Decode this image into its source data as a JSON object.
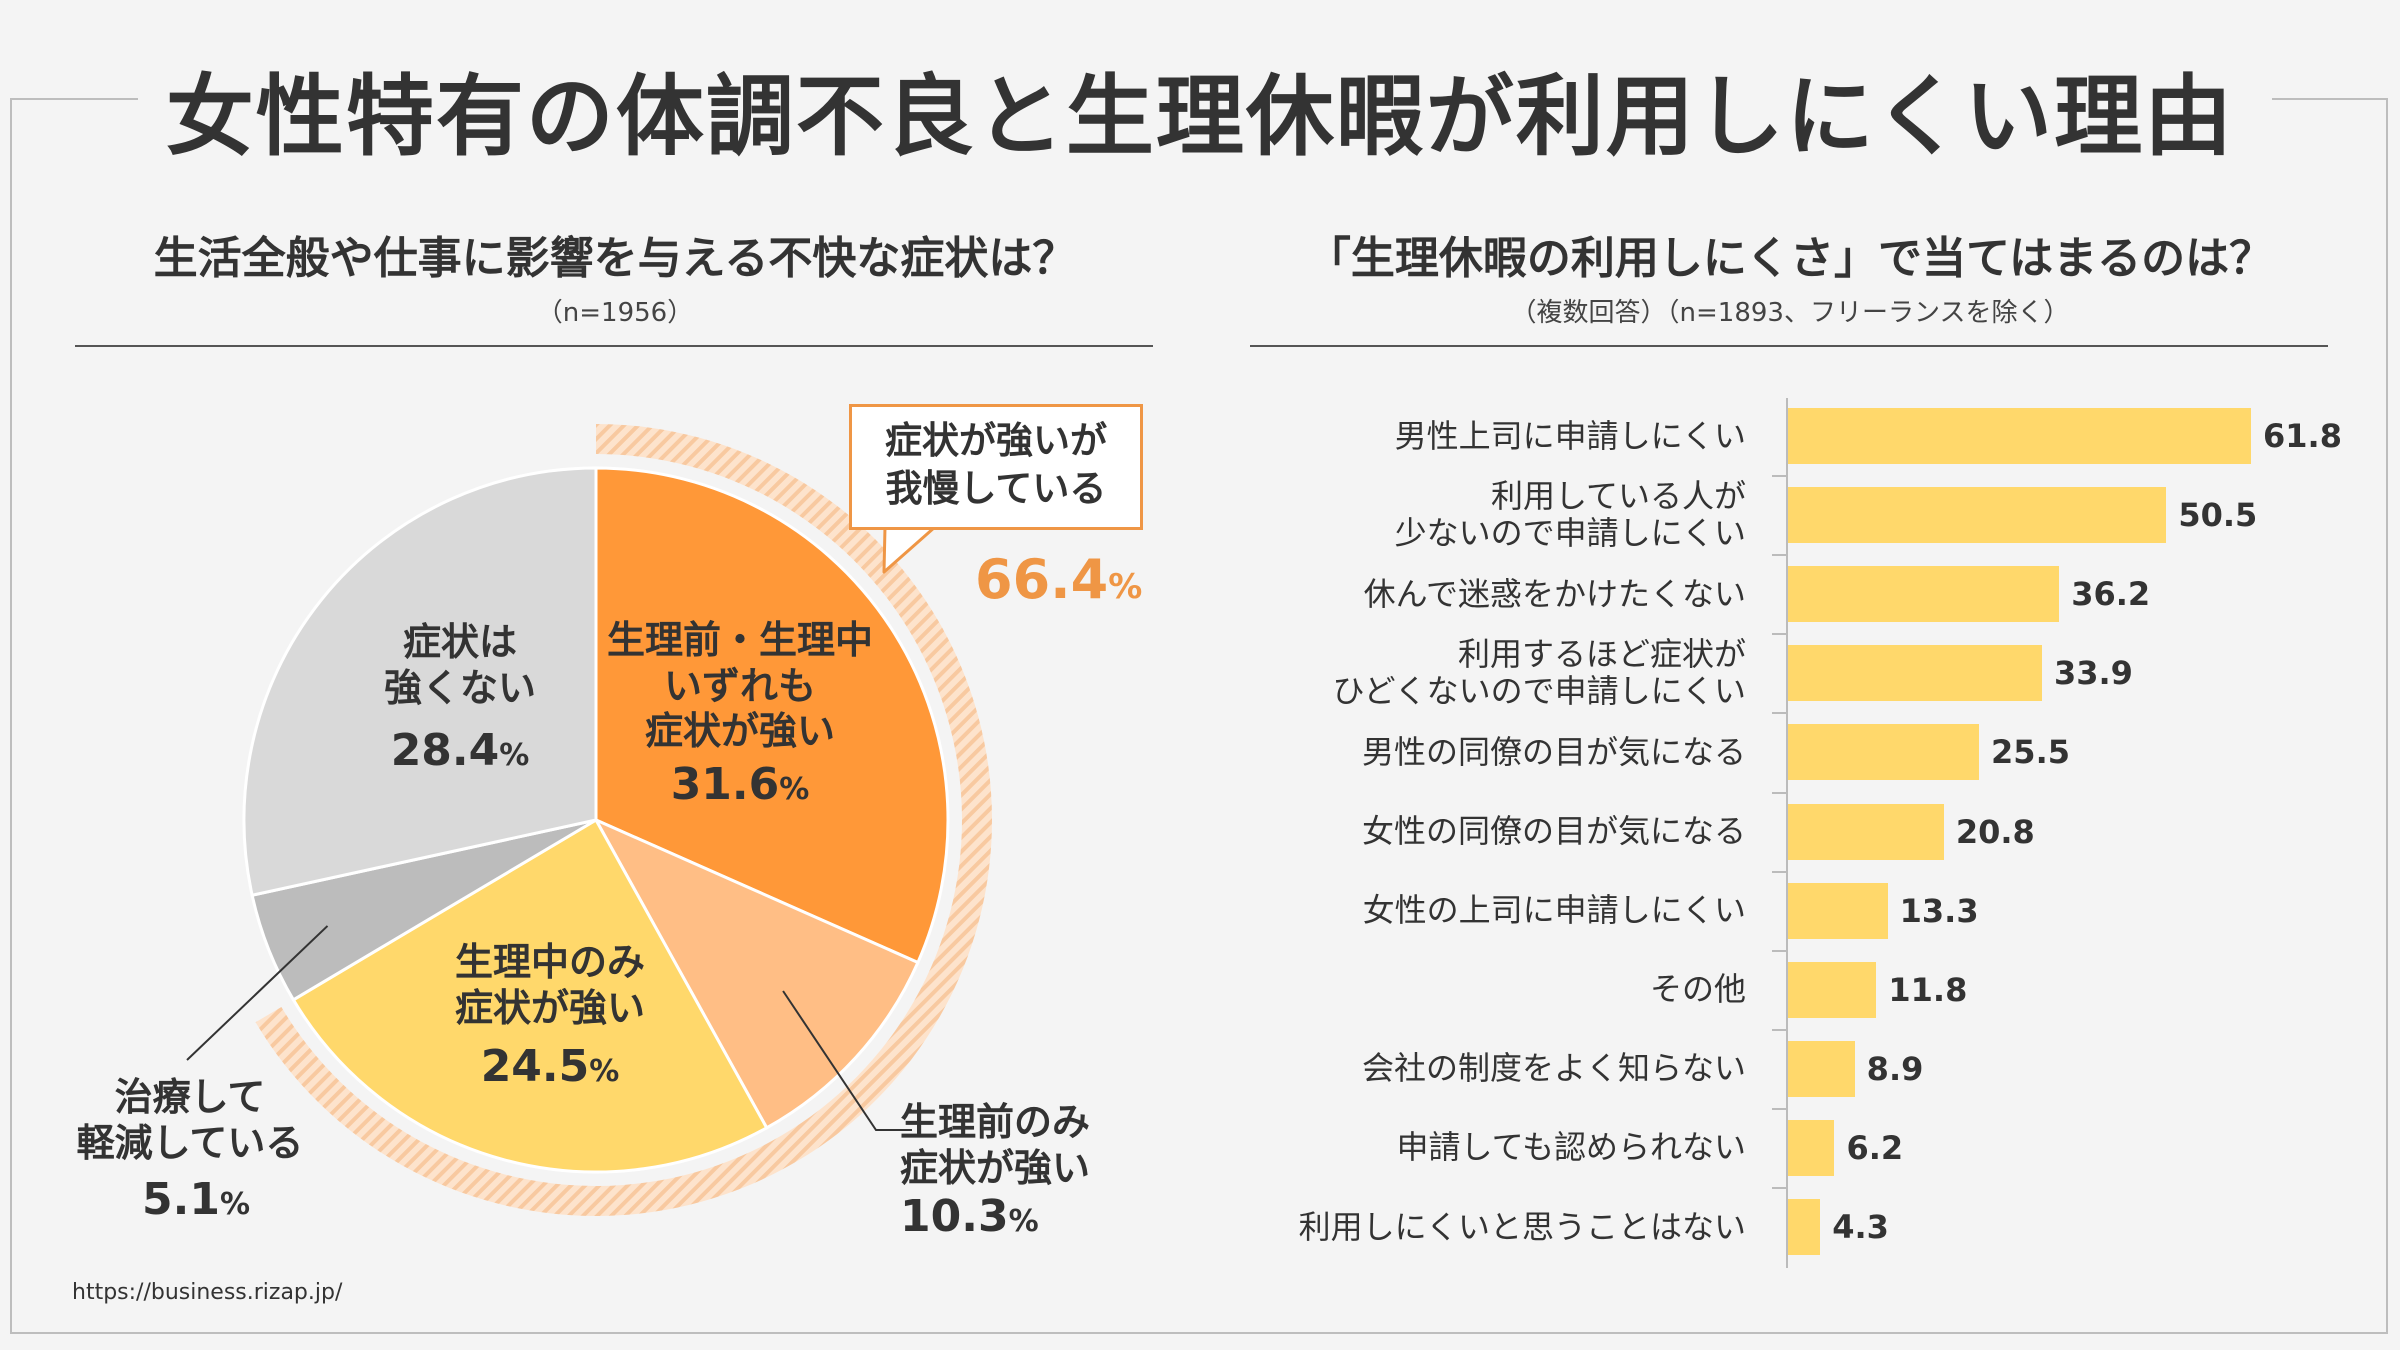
{
  "title": "女性特有の体調不良と生理休暇が利用しにくい理由",
  "left": {
    "heading": "生活全般や仕事に影響を与える不快な症状は？",
    "sub": "（n=1956）"
  },
  "right": {
    "heading": "「生理休暇の利用しにくさ」で当てはまるのは？",
    "sub": "（複数回答）（n=1893、フリーランスを除く）"
  },
  "callout": {
    "line1": "症状が強いが",
    "line2": "我慢している",
    "value": "66.4",
    "unit": "%"
  },
  "source": "https://business.rizap.jp/",
  "colors": {
    "orange": "#ff9838",
    "light_orange": "#ffbe85",
    "yellow": "#ffd86b",
    "dark_gray": "#bcbcbc",
    "light_gray": "#d9d9d9",
    "accent": "#ef9645"
  },
  "chart_data": [
    {
      "type": "pie",
      "slices": [
        {
          "label": "生理前・生理中いずれも症状が強い",
          "lines": [
            "生理前・生理中",
            "いずれも",
            "症状が強い"
          ],
          "value": 31.6,
          "value_text": "31.6",
          "color": "#ff9838"
        },
        {
          "label": "生理前のみ症状が強い",
          "lines": [
            "生理前のみ",
            "症状が強い"
          ],
          "value": 10.3,
          "value_text": "10.3",
          "color": "#ffbe85"
        },
        {
          "label": "生理中のみ症状が強い",
          "lines": [
            "生理中のみ",
            "症状が強い"
          ],
          "value": 24.5,
          "value_text": "24.5",
          "color": "#ffd86b"
        },
        {
          "label": "治療して軽減している",
          "lines": [
            "治療して",
            "軽減している"
          ],
          "value": 5.1,
          "value_text": "5.1",
          "color": "#bcbcbc"
        },
        {
          "label": "症状は強くない",
          "lines": [
            "症状は",
            "強くない"
          ],
          "value": 28.4,
          "value_text": "28.4",
          "color": "#d9d9d9"
        }
      ],
      "unit": "%"
    },
    {
      "type": "bar",
      "orientation": "horizontal",
      "categories": [
        [
          "男性上司に申請しにくい"
        ],
        [
          "利用している人が",
          "少ないので申請しにくい"
        ],
        [
          "休んで迷惑をかけたくない"
        ],
        [
          "利用するほど症状が",
          "ひどくないので申請しにくい"
        ],
        [
          "男性の同僚の目が気になる"
        ],
        [
          "女性の同僚の目が気になる"
        ],
        [
          "女性の上司に申請しにくい"
        ],
        [
          "その他"
        ],
        [
          "会社の制度をよく知らない"
        ],
        [
          "申請しても認められない"
        ],
        [
          "利用しにくいと思うことはない"
        ]
      ],
      "values": [
        61.8,
        50.5,
        36.2,
        33.9,
        25.5,
        20.8,
        13.3,
        11.8,
        8.9,
        6.2,
        4.3
      ],
      "value_labels": [
        "61.8",
        "50.5",
        "36.2",
        "33.9",
        "25.5",
        "20.8",
        "13.3",
        "11.8",
        "8.9",
        "6.2",
        "4.3"
      ],
      "color": "#ffd86b"
    }
  ]
}
